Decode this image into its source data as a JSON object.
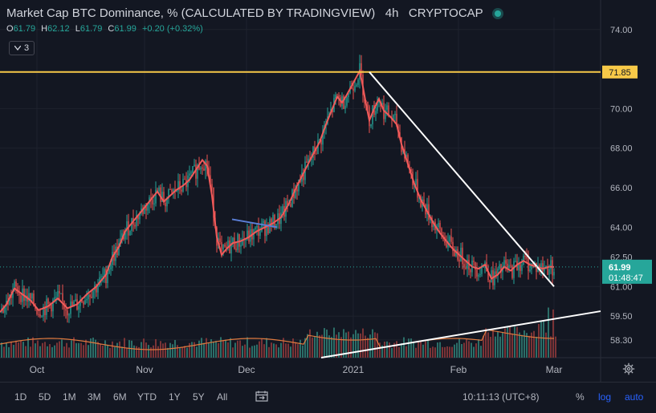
{
  "header": {
    "title": "Market Cap BTC Dominance, % (CALCULATED BY TRADINGVIEW)",
    "timeframe": "4h",
    "source": "CRYPTOCAP"
  },
  "ohlc": {
    "o_label": "O",
    "o_value": "61.79",
    "h_label": "H",
    "h_value": "62.12",
    "l_label": "L",
    "l_value": "61.79",
    "c_label": "C",
    "c_value": "61.99",
    "change": "+0.20 (+0.32%)"
  },
  "indicators_toggle": {
    "icon": "chevron-down-icon",
    "count": "3"
  },
  "bottom_bar": {
    "ranges": [
      "1D",
      "5D",
      "1M",
      "3M",
      "6M",
      "YTD",
      "1Y",
      "5Y",
      "All"
    ],
    "time": "10:11:13 (UTC+8)",
    "percent": "%",
    "log": "log",
    "auto": "auto"
  },
  "chart_data": {
    "type": "line",
    "ylim": [
      57.4,
      74.6
    ],
    "y_ticks": [
      "74.00",
      "70.00",
      "68.00",
      "66.00",
      "64.00",
      "62.50",
      "61.00",
      "59.50",
      "58.30"
    ],
    "x_ticks": [
      "Oct",
      "Nov",
      "Dec",
      "2021",
      "Feb",
      "Mar"
    ],
    "colors": {
      "candles_up": "#26a69a",
      "candles_down": "#ef5350",
      "moving_average": "#f05a5a",
      "horizontal_line": "#f7c948",
      "trendlines": "#ffffff",
      "short_trendline": "#5b7fd8",
      "volume_up": "#2b6e68",
      "volume_down": "#7a3336",
      "volume_ma": "#e07a3f",
      "last_price": "#26a69a"
    },
    "series": [
      {
        "values_note": "",
        "x": [
          0,
          8,
          18,
          28,
          38,
          48,
          60,
          72,
          84,
          96,
          108,
          120,
          132,
          140,
          148,
          156,
          164,
          172,
          180,
          188,
          196,
          204,
          212,
          220,
          228,
          236,
          244,
          252,
          258,
          264,
          270,
          276,
          282,
          290,
          300,
          310,
          320,
          330,
          340,
          350,
          360,
          370,
          380,
          390,
          398,
          406,
          414,
          420,
          426,
          432,
          440,
          448,
          452,
          456,
          460,
          466,
          472,
          478,
          486,
          494,
          500,
          508,
          516,
          524,
          532,
          540,
          548,
          556,
          564,
          572,
          580,
          588,
          596,
          604,
          612,
          620,
          628,
          636,
          644,
          652,
          660,
          668,
          676,
          684,
          690
        ],
        "values": [
          59.7,
          60.1,
          60.9,
          60.6,
          60.3,
          59.8,
          60.0,
          60.4,
          59.9,
          60.1,
          60.6,
          61.0,
          61.6,
          62.5,
          63.0,
          63.8,
          64.2,
          64.6,
          65.0,
          65.4,
          65.8,
          65.3,
          65.6,
          65.9,
          66.1,
          66.4,
          66.9,
          67.4,
          67.1,
          65.6,
          63.5,
          62.6,
          62.9,
          63.2,
          63.3,
          63.5,
          63.8,
          64.0,
          64.2,
          64.5,
          65.2,
          66.1,
          66.9,
          67.7,
          68.3,
          69.2,
          70.0,
          70.6,
          70.3,
          70.7,
          71.3,
          71.9,
          71.1,
          70.2,
          69.4,
          70.0,
          70.5,
          69.9,
          69.6,
          69.2,
          68.2,
          67.2,
          66.2,
          65.4,
          64.8,
          64.2,
          63.7,
          63.3,
          62.9,
          62.6,
          62.3,
          62.0,
          61.9,
          62.1,
          61.4,
          61.6,
          62.0,
          61.8,
          62.1,
          62.3,
          62.1,
          62.0,
          61.9,
          62.0,
          61.99
        ]
      }
    ],
    "horizontal_level": 71.85,
    "last_price": 61.99,
    "last_price_label": "61.99",
    "countdown": "01:48:47",
    "level_label": "71.85"
  }
}
